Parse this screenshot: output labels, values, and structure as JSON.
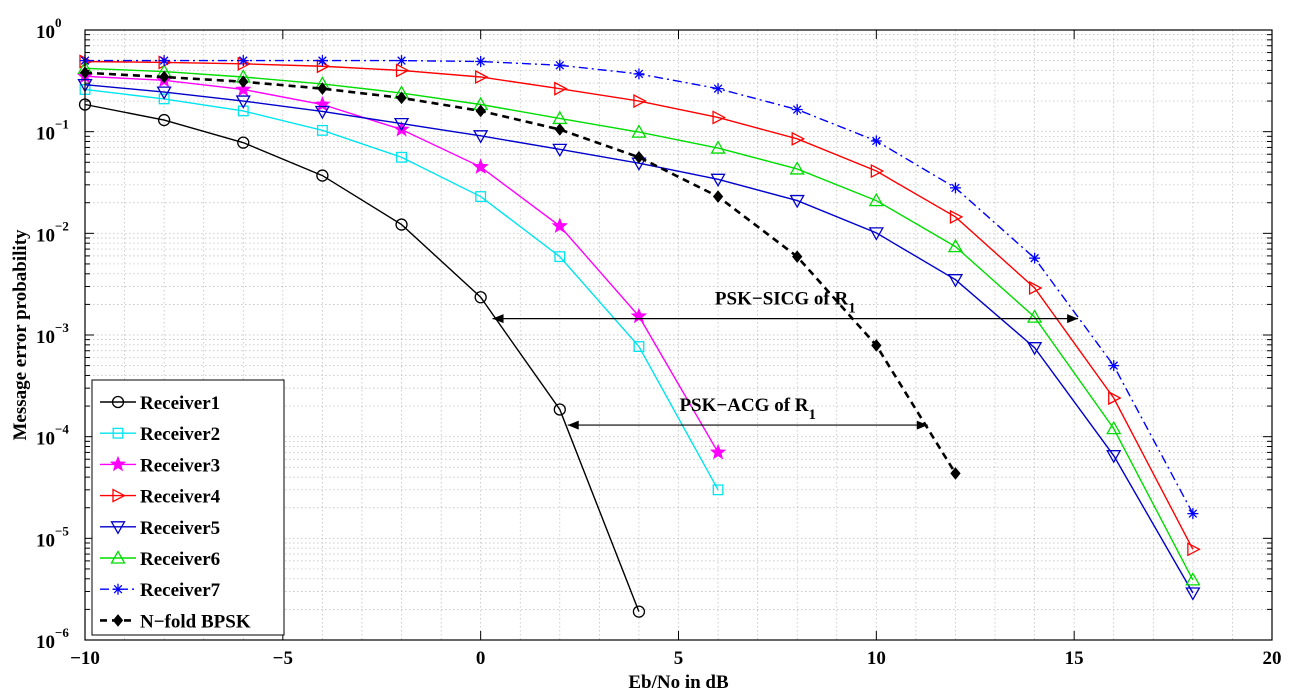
{
  "chart_data": {
    "type": "line",
    "xlabel": "Eb/No in dB",
    "ylabel": "Message error probability",
    "xlim": [
      -10,
      20
    ],
    "ylim_exponents": [
      -6,
      0
    ],
    "yscale": "log",
    "grid": true,
    "legend_position": "bottom-left",
    "x_ticks": [
      "−10",
      "−5",
      "0",
      "5",
      "10",
      "15",
      "20"
    ],
    "y_tick_base": "10",
    "y_tick_exponents": [
      "−6",
      "−5",
      "−4",
      "−3",
      "−2",
      "−1",
      "0"
    ],
    "series": [
      {
        "name": "Receiver1",
        "color": "#000000",
        "marker": "circle",
        "dash": "solid",
        "x": [
          -10,
          -8,
          -6,
          -4,
          -2,
          0,
          2,
          4
        ],
        "y": [
          0.185,
          0.13,
          0.078,
          0.037,
          0.0122,
          0.00235,
          0.000185,
          1.9e-06
        ]
      },
      {
        "name": "Receiver2",
        "color": "#00e5ee",
        "marker": "square",
        "dash": "solid",
        "x": [
          -10,
          -8,
          -6,
          -4,
          -2,
          0,
          2,
          4,
          6
        ],
        "y": [
          0.26,
          0.21,
          0.16,
          0.103,
          0.056,
          0.023,
          0.0059,
          0.00077,
          3e-05
        ]
      },
      {
        "name": "Receiver3",
        "color": "#ff00ff",
        "marker": "star",
        "dash": "solid",
        "x": [
          -10,
          -8,
          -6,
          -4,
          -2,
          0,
          2,
          4,
          6
        ],
        "y": [
          0.35,
          0.32,
          0.26,
          0.185,
          0.105,
          0.045,
          0.0118,
          0.00153,
          7e-05
        ]
      },
      {
        "name": "Receiver4",
        "color": "#ff0000",
        "marker": "triangle-right",
        "dash": "solid",
        "x": [
          -10,
          -8,
          -6,
          -4,
          -2,
          0,
          2,
          4,
          6,
          8,
          10,
          12,
          14,
          16,
          18
        ],
        "y": [
          0.49,
          0.48,
          0.465,
          0.44,
          0.4,
          0.345,
          0.265,
          0.2,
          0.138,
          0.085,
          0.041,
          0.0145,
          0.0029,
          0.00024,
          7.8e-06
        ]
      },
      {
        "name": "Receiver5",
        "color": "#0000cc",
        "marker": "triangle-down",
        "dash": "solid",
        "x": [
          -10,
          -8,
          -6,
          -4,
          -2,
          0,
          2,
          4,
          6,
          8,
          10,
          12,
          14,
          16,
          18
        ],
        "y": [
          0.29,
          0.245,
          0.2,
          0.158,
          0.12,
          0.091,
          0.067,
          0.049,
          0.034,
          0.021,
          0.0101,
          0.0035,
          0.00075,
          6.5e-05,
          2.9e-06
        ]
      },
      {
        "name": "Receiver6",
        "color": "#00dd00",
        "marker": "triangle-up",
        "dash": "solid",
        "x": [
          -10,
          -8,
          -6,
          -4,
          -2,
          0,
          2,
          4,
          6,
          8,
          10,
          12,
          14,
          16,
          18
        ],
        "y": [
          0.42,
          0.39,
          0.345,
          0.295,
          0.24,
          0.185,
          0.135,
          0.099,
          0.069,
          0.043,
          0.021,
          0.0074,
          0.0015,
          0.00012,
          3.9e-06
        ]
      },
      {
        "name": "Receiver7",
        "color": "#0000ff",
        "marker": "asterisk",
        "dash": "dashdot",
        "x": [
          -10,
          -8,
          -6,
          -4,
          -2,
          0,
          2,
          4,
          6,
          8,
          10,
          12,
          14,
          16,
          18
        ],
        "y": [
          0.5,
          0.5,
          0.5,
          0.5,
          0.5,
          0.49,
          0.45,
          0.37,
          0.265,
          0.165,
          0.081,
          0.028,
          0.0057,
          0.0005,
          1.75e-05
        ]
      },
      {
        "name": "N−fold BPSK",
        "color": "#000000",
        "marker": "diamond",
        "dash": "dashed",
        "x": [
          -10,
          -8,
          -6,
          -4,
          -2,
          0,
          2,
          4,
          6,
          8,
          10,
          12
        ],
        "y": [
          0.38,
          0.345,
          0.31,
          0.265,
          0.215,
          0.16,
          0.105,
          0.056,
          0.023,
          0.0059,
          0.00079,
          4.35e-05
        ]
      }
    ],
    "annotations": [
      {
        "label_main": "PSK−SICG of R",
        "label_sub": "1",
        "x_from": 0.3,
        "x_to": 15.1,
        "y": 0.00145
      },
      {
        "label_main": "PSK−ACG of R",
        "label_sub": "1",
        "x_from": 2.2,
        "x_to": 11.3,
        "y": 0.00013
      }
    ]
  }
}
